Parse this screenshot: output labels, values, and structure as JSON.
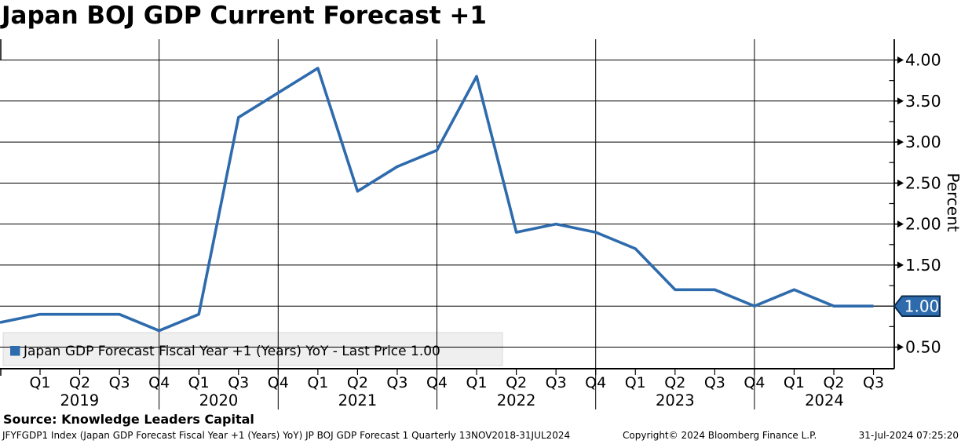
{
  "title": "Japan BOJ GDP Current Forecast +1",
  "axis": {
    "y_label": "Percent",
    "y_ticks": [
      "4.00",
      "3.50",
      "3.00",
      "2.50",
      "2.00",
      "1.50",
      "1.00",
      "0.50"
    ],
    "last_price_badge": "1.00"
  },
  "legend": {
    "label": "Japan GDP Forecast Fiscal Year +1 (Years) YoY - Last Price 1.00"
  },
  "footer": {
    "source": "Source: Knowledge Leaders Capital",
    "info": "JFYFGDP1 Index (Japan GDP Forecast Fiscal Year +1 (Years) YoY) JP BOJ GDP Forecast 1  Quarterly 13NOV2018-31JUL2024",
    "copyright": "Copyright© 2024 Bloomberg Finance L.P.",
    "timestamp": "31-Jul-2024 07:25:20"
  },
  "colors": {
    "line": "#2e6bad",
    "badge_fill": "#2e6bad",
    "badge_border": "#0d2c4e",
    "badge_text": "#ffffff",
    "legend_bg": "#efefef",
    "legend_border": "#d9d9d9",
    "grid": "#000000"
  },
  "chart_data": {
    "type": "line",
    "title": "Japan BOJ GDP Current Forecast +1",
    "xlabel": "",
    "ylabel": "Percent",
    "ylim": [
      0.25,
      4.25
    ],
    "y_tick_values": [
      4.0,
      3.5,
      3.0,
      2.5,
      2.0,
      1.5,
      1.0,
      0.5
    ],
    "minor_tick_step": 0.25,
    "grid": true,
    "legend_position": "bottom-left",
    "series_name": "Japan GDP Forecast Fiscal Year +1 (Years) YoY",
    "last_price": 1.0,
    "categories": [
      "Q1 2019",
      "Q2 2019",
      "Q3 2019",
      "Q4 2019",
      "Q1 2020",
      "Q3 2020",
      "Q4 2020",
      "Q1 2021",
      "Q2 2021",
      "Q3 2021",
      "Q4 2021",
      "Q1 2022",
      "Q2 2022",
      "Q3 2022",
      "Q4 2022",
      "Q1 2023",
      "Q2 2023",
      "Q3 2023",
      "Q4 2023",
      "Q1 2024",
      "Q2 2024",
      "Q3 2024"
    ],
    "quarter_labels": [
      "Q1",
      "Q2",
      "Q3",
      "Q4",
      "Q1",
      "Q3",
      "Q4",
      "Q1",
      "Q2",
      "Q3",
      "Q4",
      "Q1",
      "Q2",
      "Q3",
      "Q4",
      "Q1",
      "Q2",
      "Q3",
      "Q4",
      "Q1",
      "Q2",
      "Q3"
    ],
    "year_groups": [
      {
        "label": "2019",
        "end_index": 3
      },
      {
        "label": "2020",
        "end_index": 6
      },
      {
        "label": "2021",
        "end_index": 10
      },
      {
        "label": "2022",
        "end_index": 14
      },
      {
        "label": "2023",
        "end_index": 18
      },
      {
        "label": "2024",
        "end_index": null
      }
    ],
    "leading_edge_value": 0.8,
    "values": [
      0.9,
      0.9,
      0.9,
      0.7,
      0.9,
      3.3,
      3.6,
      3.9,
      2.4,
      2.7,
      2.9,
      3.8,
      1.9,
      2.0,
      1.9,
      1.7,
      1.2,
      1.2,
      1.0,
      1.2,
      1.0,
      1.0
    ]
  }
}
